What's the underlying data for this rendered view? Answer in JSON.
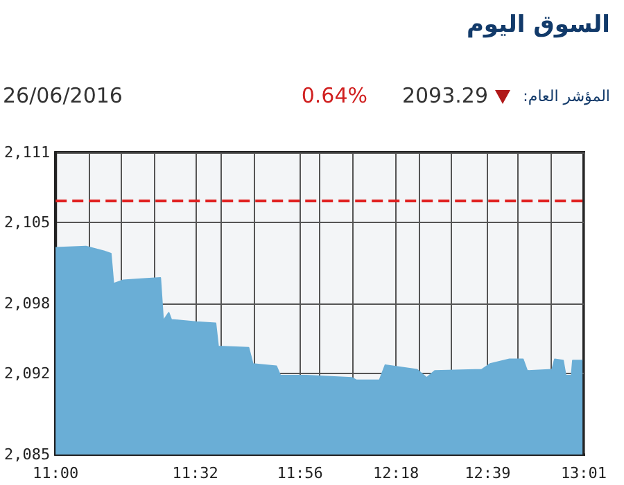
{
  "chart_data": {
    "type": "area",
    "title": "السوق اليوم",
    "annotations": [
      "المؤشر العام:",
      "2093.29",
      "0.64%",
      "26/06/2016"
    ],
    "x": [
      11.0,
      11.116,
      11.184,
      11.211,
      11.221,
      11.258,
      11.326,
      11.4,
      11.411,
      11.432,
      11.442,
      11.537,
      11.611,
      11.621,
      11.737,
      11.753,
      11.843,
      11.858,
      11.958,
      12.132,
      12.148,
      12.237,
      12.259,
      12.38,
      12.417,
      12.448,
      12.627,
      12.659,
      12.733,
      12.785,
      12.801,
      12.896,
      12.906,
      12.938,
      12.948,
      12.97,
      12.975,
      13.012
    ],
    "series": [
      {
        "color": "#6aaed6",
        "values": [
          2102.8,
          2102.9,
          2102.5,
          2102.3,
          2099.7,
          2100.0,
          2100.1,
          2100.2,
          2096.5,
          2097.2,
          2096.6,
          2096.4,
          2096.3,
          2094.3,
          2094.2,
          2092.8,
          2092.6,
          2091.8,
          2091.8,
          2091.6,
          2091.4,
          2091.4,
          2092.7,
          2092.3,
          2091.6,
          2092.2,
          2092.3,
          2092.8,
          2093.2,
          2093.2,
          2092.2,
          2092.3,
          2093.2,
          2093.1,
          2091.8,
          2091.8,
          2093.1,
          2093.1
        ]
      }
    ],
    "xlim": [
      11.0,
      13.017
    ],
    "xticks": [
      {
        "value": 11.0,
        "label": "11:00"
      },
      {
        "value": 11.126,
        "label": null
      },
      {
        "value": 11.252,
        "label": null
      },
      {
        "value": 11.378,
        "label": null
      },
      {
        "value": 11.533,
        "label": "11:32"
      },
      {
        "value": 11.63,
        "label": null
      },
      {
        "value": 11.756,
        "label": null
      },
      {
        "value": 11.933,
        "label": "11:56"
      },
      {
        "value": 12.008,
        "label": null
      },
      {
        "value": 12.134,
        "label": null
      },
      {
        "value": 12.3,
        "label": "12:18"
      },
      {
        "value": 12.386,
        "label": null
      },
      {
        "value": 12.512,
        "label": null
      },
      {
        "value": 12.65,
        "label": "12:39"
      },
      {
        "value": 12.764,
        "label": null
      },
      {
        "value": 12.89,
        "label": null
      },
      {
        "value": 13.017,
        "label": "13:01"
      }
    ],
    "ylim": [
      2085,
      2111
    ],
    "yticks": [
      {
        "value": 2085,
        "label": "2,085"
      },
      {
        "value": 2092,
        "label": "2,092"
      },
      {
        "value": 2098,
        "label": "2,098"
      },
      {
        "value": 2105,
        "label": "2,105"
      },
      {
        "value": 2111,
        "label": "2,111"
      }
    ],
    "ref_lines": [
      {
        "axis": "y",
        "value": 2106.8,
        "color": "#e02020",
        "line_style": "dashed"
      }
    ],
    "grid": true,
    "marker": "none"
  }
}
